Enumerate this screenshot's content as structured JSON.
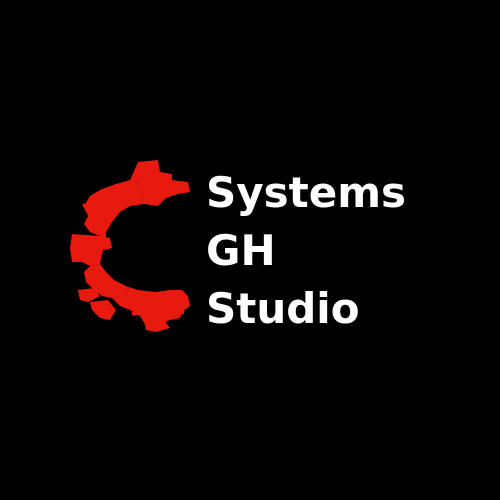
{
  "brand": {
    "line1": "Systems",
    "line2": "GH",
    "line3": "Studio"
  },
  "colors": {
    "background": "#000000",
    "mark": "#e8190e",
    "text": "#ffffff"
  },
  "icons": {
    "logo": "gear-c-glitch-icon"
  }
}
